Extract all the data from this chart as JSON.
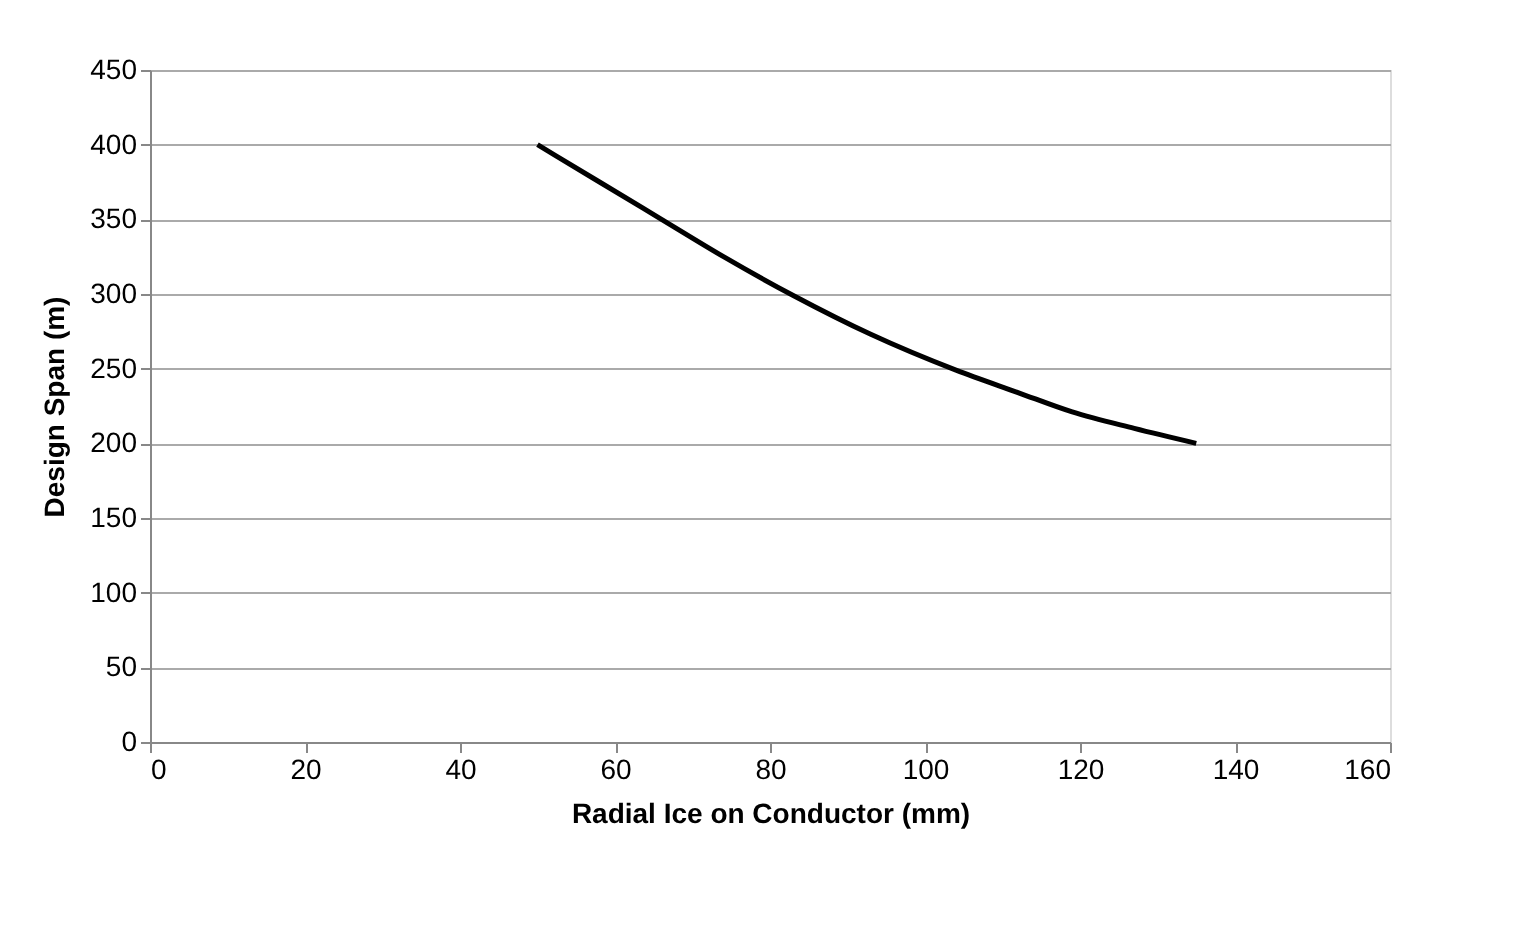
{
  "chart_data": {
    "type": "line",
    "xlabel": "Radial Ice on Conductor  (mm)",
    "ylabel": "Design Span (m)",
    "x": [
      50,
      58,
      66,
      74,
      83,
      93,
      104,
      112,
      119,
      127,
      135
    ],
    "series": [
      {
        "color": "#000000",
        "values": [
          400,
          375,
          350,
          325,
          299,
          273,
          249,
          234,
          221,
          210,
          200
        ]
      }
    ],
    "xlim": [
      0,
      160
    ],
    "xticks": [
      0,
      20,
      40,
      60,
      80,
      100,
      120,
      140,
      160
    ],
    "ylim": [
      0,
      450
    ],
    "yticks": [
      0,
      50,
      100,
      150,
      200,
      250,
      300,
      350,
      400,
      450
    ],
    "grid": "y",
    "legend": false,
    "marker": "none",
    "line_style": "solid"
  }
}
